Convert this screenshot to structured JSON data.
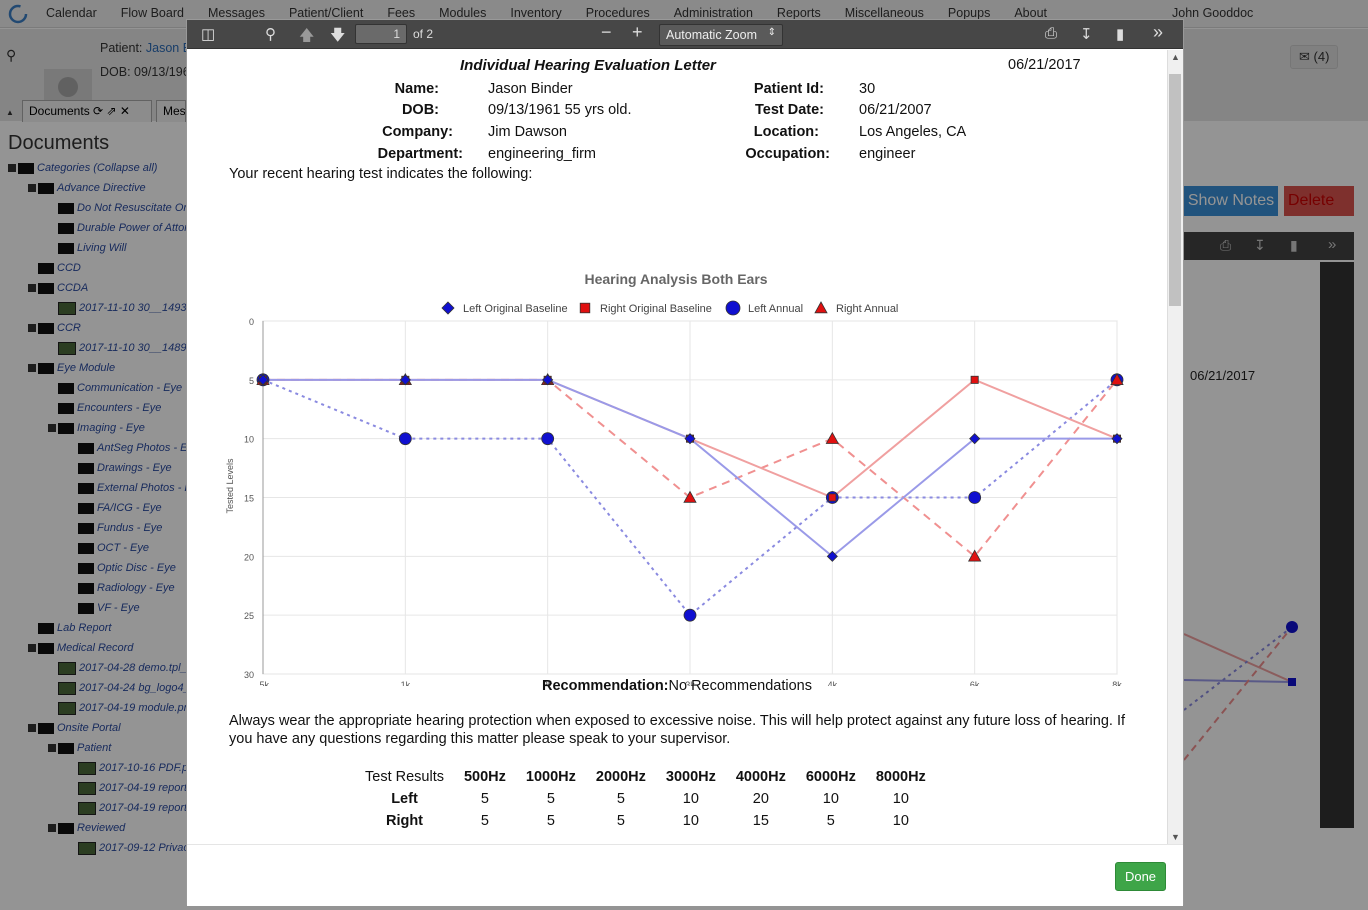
{
  "app": {
    "nav": [
      "Calendar",
      "Flow Board",
      "Messages",
      "Patient/Client",
      "Fees",
      "Modules",
      "Inventory",
      "Procedures",
      "Administration",
      "Reports",
      "Miscellaneous",
      "Popups",
      "About"
    ],
    "user": "John Gooddoc"
  },
  "patient": {
    "label": "Patient:",
    "name": "Jason B",
    "dob": "DOB: 09/13/196",
    "messages": "(4)"
  },
  "tabs": {
    "documents": "Documents",
    "messages": "Mes"
  },
  "documents_panel": {
    "title": "Documents",
    "tree": [
      {
        "label": "Categories (Collapse all)",
        "level": 0,
        "kind": "folder"
      },
      {
        "label": "Advance Directive",
        "level": 1,
        "kind": "folder",
        "exp": true
      },
      {
        "label": "Do Not Resuscitate Orde",
        "level": 2,
        "kind": "folder"
      },
      {
        "label": "Durable Power of Attorne",
        "level": 2,
        "kind": "folder"
      },
      {
        "label": "Living Will",
        "level": 2,
        "kind": "folder"
      },
      {
        "label": "CCD",
        "level": 1,
        "kind": "folder"
      },
      {
        "label": "CCDA",
        "level": 1,
        "kind": "folder",
        "exp": true
      },
      {
        "label": "2017-11-10 30__14931",
        "level": 2,
        "kind": "img"
      },
      {
        "label": "CCR",
        "level": 1,
        "kind": "folder",
        "exp": true
      },
      {
        "label": "2017-11-10 30__14894",
        "level": 2,
        "kind": "img"
      },
      {
        "label": "Eye Module",
        "level": 1,
        "kind": "folder",
        "exp": true
      },
      {
        "label": "Communication - Eye",
        "level": 2,
        "kind": "folder"
      },
      {
        "label": "Encounters - Eye",
        "level": 2,
        "kind": "folder"
      },
      {
        "label": "Imaging - Eye",
        "level": 2,
        "kind": "folder",
        "exp": true
      },
      {
        "label": "AntSeg Photos - Eye",
        "level": 3,
        "kind": "folder"
      },
      {
        "label": "Drawings - Eye",
        "level": 3,
        "kind": "folder"
      },
      {
        "label": "External Photos - Eye",
        "level": 3,
        "kind": "folder"
      },
      {
        "label": "FA/ICG - Eye",
        "level": 3,
        "kind": "folder"
      },
      {
        "label": "Fundus - Eye",
        "level": 3,
        "kind": "folder"
      },
      {
        "label": "OCT - Eye",
        "level": 3,
        "kind": "folder"
      },
      {
        "label": "Optic Disc - Eye",
        "level": 3,
        "kind": "folder"
      },
      {
        "label": "Radiology - Eye",
        "level": 3,
        "kind": "folder"
      },
      {
        "label": "VF - Eye",
        "level": 3,
        "kind": "folder"
      },
      {
        "label": "Lab Report",
        "level": 1,
        "kind": "folder"
      },
      {
        "label": "Medical Record",
        "level": 1,
        "kind": "folder",
        "exp": true
      },
      {
        "label": "2017-04-28 demo.tpl_3",
        "level": 2,
        "kind": "img"
      },
      {
        "label": "2017-04-24 bg_logo4_1",
        "level": 2,
        "kind": "img"
      },
      {
        "label": "2017-04-19 module.png",
        "level": 2,
        "kind": "img"
      },
      {
        "label": "Onsite Portal",
        "level": 1,
        "kind": "folder",
        "exp": true
      },
      {
        "label": "Patient",
        "level": 2,
        "kind": "folder",
        "exp": true
      },
      {
        "label": "2017-10-16 PDF.pdf",
        "level": 3,
        "kind": "img"
      },
      {
        "label": "2017-04-19 report_",
        "level": 3,
        "kind": "img"
      },
      {
        "label": "2017-04-19 report_",
        "level": 3,
        "kind": "img"
      },
      {
        "label": "Reviewed",
        "level": 2,
        "kind": "folder",
        "exp": true
      },
      {
        "label": "2017-09-12 Privacy",
        "level": 3,
        "kind": "img"
      }
    ]
  },
  "background_right": {
    "show_notes": "Show Notes",
    "delete": "Delete",
    "date": "06/21/2017"
  },
  "pdf_toolbar": {
    "page": "1",
    "of_pages": "of 2",
    "zoom": "Automatic Zoom"
  },
  "letter": {
    "title": "Individual Hearing Evaluation Letter",
    "date": "06/21/2017",
    "fields_left": [
      {
        "label": "Name:",
        "value": "Jason Binder"
      },
      {
        "label": "DOB:",
        "value": "09/13/1961 55 yrs old."
      },
      {
        "label": "Company:",
        "value": "Jim Dawson"
      },
      {
        "label": "Department:",
        "value": "engineering_firm"
      }
    ],
    "fields_right": [
      {
        "label": "Patient Id:",
        "value": "30"
      },
      {
        "label": "Test Date:",
        "value": "06/21/2007"
      },
      {
        "label": "Location:",
        "value": "Los Angeles, CA"
      },
      {
        "label": "Occupation:",
        "value": "engineer"
      }
    ],
    "intro": "Your recent hearing test indicates the following:",
    "recommendation_label": "Recommendation:",
    "recommendation": "No Recommendations",
    "advice": "Always wear the appropriate hearing protection when exposed to excessive noise. This will help protect against any future loss of hearing. If you have any questions regarding this matter please speak to your supervisor.",
    "results": {
      "header": [
        "Test Results",
        "500Hz",
        "1000Hz",
        "2000Hz",
        "3000Hz",
        "4000Hz",
        "6000Hz",
        "8000Hz"
      ],
      "rows": [
        {
          "label": "Left",
          "values": [
            "5",
            "5",
            "5",
            "10",
            "20",
            "10",
            "10"
          ]
        },
        {
          "label": "Right",
          "values": [
            "5",
            "5",
            "5",
            "10",
            "15",
            "5",
            "10"
          ]
        }
      ]
    }
  },
  "footer": {
    "done": "Done"
  },
  "chart_data": {
    "type": "line",
    "title": "Hearing Analysis Both Ears",
    "xlabel": "Test Tones",
    "ylabel": "Tested Levels",
    "categories": [
      ".5k",
      "1k",
      "2k",
      "3k",
      "4k",
      "6k",
      "8k"
    ],
    "ylim": [
      0,
      30
    ],
    "y_inverted": true,
    "yticks": [
      0,
      5,
      10,
      15,
      20,
      25,
      30
    ],
    "legend_position": "top",
    "series": [
      {
        "name": "Left Original Baseline",
        "marker": "diamond",
        "color": "#1010d0",
        "line": "solid",
        "line_color": "#9a9ae8",
        "values": [
          5,
          5,
          5,
          10,
          20,
          10,
          10
        ]
      },
      {
        "name": "Right Original Baseline",
        "marker": "square",
        "color": "#e01010",
        "line": "solid",
        "line_color": "#f0a0a0",
        "values": [
          5,
          5,
          5,
          10,
          15,
          5,
          10
        ]
      },
      {
        "name": "Left Annual",
        "marker": "circle",
        "color": "#1010d0",
        "line": "dotted",
        "line_color": "#8a8ae0",
        "values": [
          5,
          10,
          10,
          25,
          15,
          15,
          5
        ]
      },
      {
        "name": "Right Annual",
        "marker": "triangle",
        "color": "#e01010",
        "line": "dashed",
        "line_color": "#f09090",
        "values": [
          5,
          5,
          5,
          15,
          10,
          20,
          5
        ]
      }
    ]
  }
}
